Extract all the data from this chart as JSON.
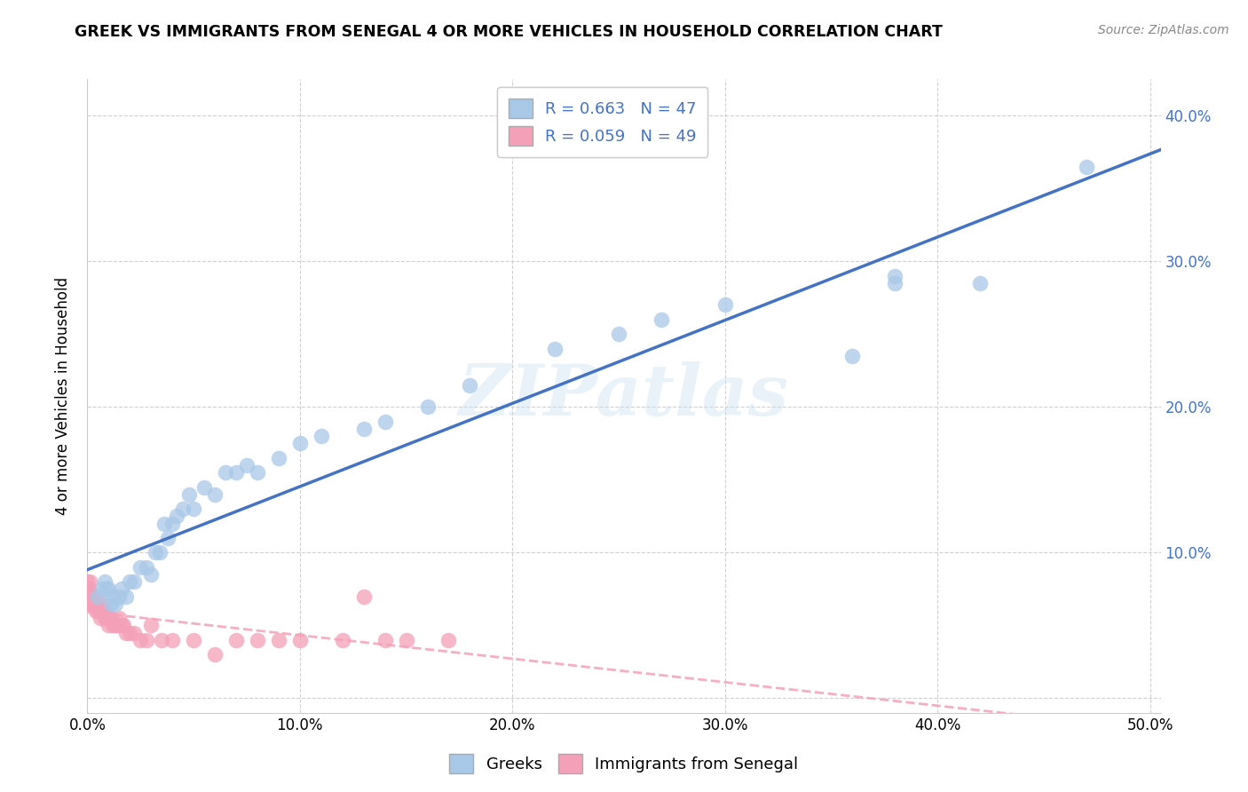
{
  "title": "GREEK VS IMMIGRANTS FROM SENEGAL 4 OR MORE VEHICLES IN HOUSEHOLD CORRELATION CHART",
  "source": "Source: ZipAtlas.com",
  "ylabel": "4 or more Vehicles in Household",
  "xlim": [
    0.0,
    0.505
  ],
  "ylim": [
    -0.01,
    0.425
  ],
  "x_ticks": [
    0.0,
    0.1,
    0.2,
    0.3,
    0.4,
    0.5
  ],
  "x_tick_labels": [
    "0.0%",
    "10.0%",
    "20.0%",
    "30.0%",
    "40.0%",
    "50.0%"
  ],
  "y_ticks": [
    0.0,
    0.1,
    0.2,
    0.3,
    0.4
  ],
  "y_tick_labels_left": [
    "",
    "",
    "",
    "",
    ""
  ],
  "y_tick_labels_right": [
    "",
    "10.0%",
    "20.0%",
    "30.0%",
    "40.0%"
  ],
  "legend_labels": [
    "Greeks",
    "Immigrants from Senegal"
  ],
  "greek_R": 0.663,
  "greek_N": 47,
  "senegal_R": 0.059,
  "senegal_N": 49,
  "greek_color": "#a8c8e8",
  "senegal_color": "#f4a0b8",
  "greek_line_color": "#4472c4",
  "senegal_line_color": "#f4a0b8",
  "label_color": "#4472c4",
  "watermark": "ZIPatlas",
  "greek_x": [
    0.005,
    0.007,
    0.008,
    0.009,
    0.01,
    0.011,
    0.012,
    0.013,
    0.015,
    0.016,
    0.018,
    0.02,
    0.022,
    0.025,
    0.028,
    0.03,
    0.032,
    0.034,
    0.036,
    0.038,
    0.04,
    0.042,
    0.045,
    0.048,
    0.05,
    0.055,
    0.06,
    0.065,
    0.07,
    0.075,
    0.08,
    0.09,
    0.1,
    0.11,
    0.13,
    0.14,
    0.16,
    0.18,
    0.22,
    0.25,
    0.27,
    0.3,
    0.36,
    0.38,
    0.42,
    0.47,
    0.38
  ],
  "greek_y": [
    0.07,
    0.075,
    0.08,
    0.075,
    0.075,
    0.065,
    0.07,
    0.065,
    0.07,
    0.075,
    0.07,
    0.08,
    0.08,
    0.09,
    0.09,
    0.085,
    0.1,
    0.1,
    0.12,
    0.11,
    0.12,
    0.125,
    0.13,
    0.14,
    0.13,
    0.145,
    0.14,
    0.155,
    0.155,
    0.16,
    0.155,
    0.165,
    0.175,
    0.18,
    0.185,
    0.19,
    0.2,
    0.215,
    0.24,
    0.25,
    0.26,
    0.27,
    0.235,
    0.285,
    0.285,
    0.365,
    0.29
  ],
  "senegal_x": [
    0.0,
    0.0,
    0.0,
    0.0,
    0.001,
    0.001,
    0.001,
    0.002,
    0.002,
    0.003,
    0.003,
    0.004,
    0.004,
    0.005,
    0.005,
    0.006,
    0.007,
    0.007,
    0.008,
    0.008,
    0.009,
    0.01,
    0.01,
    0.011,
    0.012,
    0.013,
    0.014,
    0.015,
    0.016,
    0.017,
    0.018,
    0.02,
    0.022,
    0.025,
    0.028,
    0.03,
    0.035,
    0.04,
    0.05,
    0.06,
    0.07,
    0.08,
    0.09,
    0.1,
    0.12,
    0.14,
    0.15,
    0.17,
    0.13
  ],
  "senegal_y": [
    0.065,
    0.07,
    0.075,
    0.08,
    0.07,
    0.075,
    0.08,
    0.065,
    0.07,
    0.065,
    0.07,
    0.06,
    0.065,
    0.06,
    0.065,
    0.055,
    0.06,
    0.065,
    0.055,
    0.06,
    0.055,
    0.05,
    0.055,
    0.055,
    0.05,
    0.05,
    0.05,
    0.055,
    0.05,
    0.05,
    0.045,
    0.045,
    0.045,
    0.04,
    0.04,
    0.05,
    0.04,
    0.04,
    0.04,
    0.03,
    0.04,
    0.04,
    0.04,
    0.04,
    0.04,
    0.04,
    0.04,
    0.04,
    0.07
  ]
}
